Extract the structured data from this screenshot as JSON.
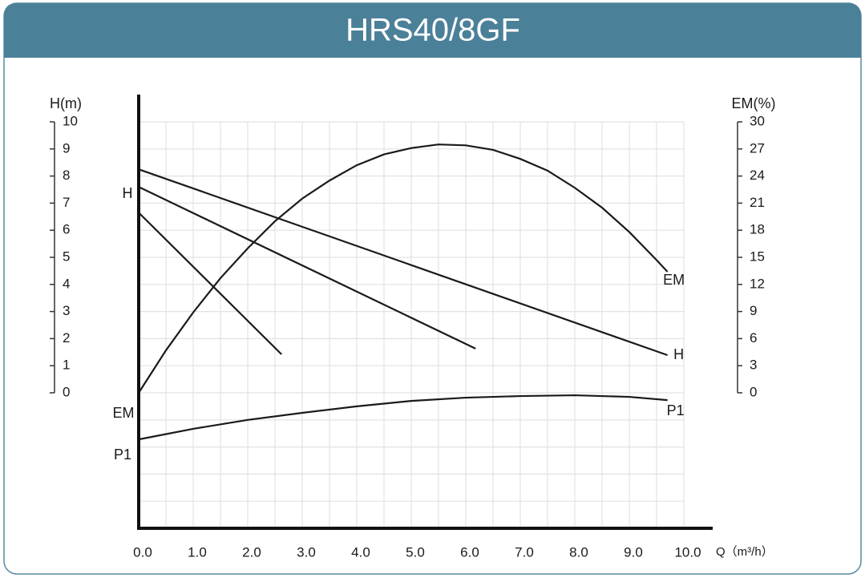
{
  "chart_data": {
    "type": "line",
    "title": "HRS40/8GF",
    "y_label": "H(m)",
    "y2_label": "EM(%)",
    "x_label": "Q（m³/h）",
    "xlim": [
      0,
      10
    ],
    "xticks": [
      {
        "value": 0,
        "label": "0.0"
      },
      {
        "value": 1,
        "label": "1.0"
      },
      {
        "value": 2,
        "label": "2.0"
      },
      {
        "value": 3,
        "label": "3.0"
      },
      {
        "value": 4,
        "label": "4.0"
      },
      {
        "value": 5,
        "label": "5.0"
      },
      {
        "value": 6,
        "label": "6.0"
      },
      {
        "value": 7,
        "label": "7.0"
      },
      {
        "value": 8,
        "label": "8.0"
      },
      {
        "value": 9,
        "label": "9.0"
      },
      {
        "value": 10,
        "label": "10.0"
      }
    ],
    "ylim": [
      -5,
      10
    ],
    "yticks": [
      0,
      1,
      2,
      3,
      4,
      5,
      6,
      7,
      8,
      9,
      10
    ],
    "y2lim": [
      -15,
      30
    ],
    "y2ticks": [
      0,
      3,
      6,
      9,
      12,
      15,
      18,
      21,
      24,
      27,
      30
    ],
    "grid": true,
    "annotations": [
      "H",
      "EM",
      "P1"
    ],
    "series": [
      {
        "color": "#1a1a1a",
        "x": [
          0,
          2.62
        ],
        "values": [
          6.65,
          1.42
        ]
      },
      {
        "color": "#1a1a1a",
        "x": [
          0,
          6.18
        ],
        "values": [
          7.6,
          1.63
        ]
      },
      {
        "name": "H",
        "color": "#1a1a1a",
        "x": [
          0,
          9.7
        ],
        "values": [
          8.25,
          1.39
        ]
      },
      {
        "name": "EM",
        "color": "#1a1a1a",
        "axis": "y2",
        "x": [
          0,
          0.5,
          1,
          1.5,
          2,
          2.5,
          3,
          3.5,
          4,
          4.5,
          5,
          5.5,
          6,
          6.5,
          7,
          7.5,
          8,
          8.5,
          9,
          9.5,
          9.7
        ],
        "values": [
          0,
          4.7,
          8.9,
          12.7,
          16.0,
          19.0,
          21.5,
          23.5,
          25.2,
          26.4,
          27.1,
          27.5,
          27.4,
          26.9,
          25.9,
          24.6,
          22.7,
          20.5,
          17.8,
          14.7,
          13.4
        ]
      },
      {
        "name": "P1",
        "color": "#1a1a1a",
        "x": [
          0,
          1,
          2,
          3,
          4,
          5,
          6,
          7,
          8,
          9,
          9.7
        ],
        "values": [
          -1.72,
          -1.33,
          -1.0,
          -0.74,
          -0.5,
          -0.3,
          -0.18,
          -0.12,
          -0.09,
          -0.15,
          -0.27
        ]
      }
    ]
  }
}
